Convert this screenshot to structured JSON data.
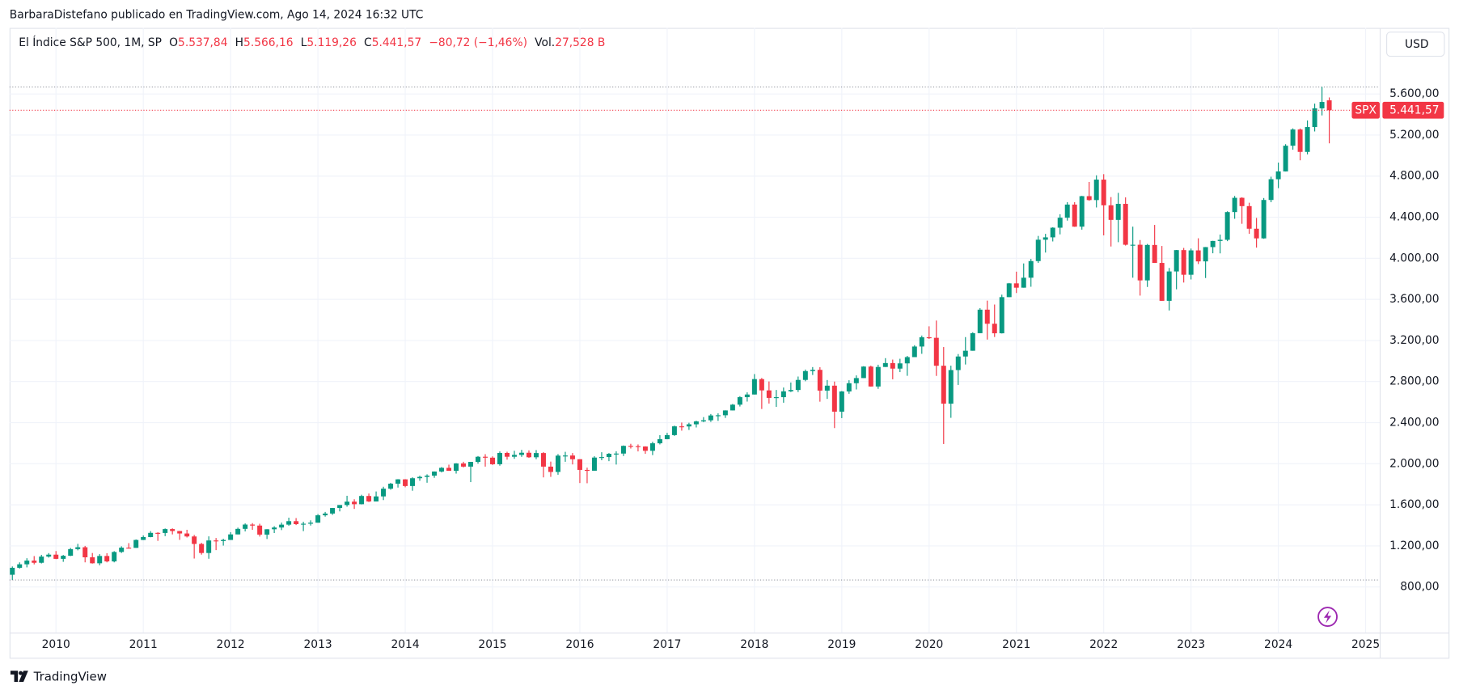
{
  "header": {
    "attribution": "BarbaraDistefano publicado en TradingView.com, Ago 14, 2024 16:32 UTC"
  },
  "chart_data": {
    "type": "candlestick",
    "title": "El Índice S&P 500, 1M, SP",
    "legend": {
      "o_label": "O",
      "open": "5.537,84",
      "h_label": "H",
      "high": "5.566,16",
      "l_label": "L",
      "low": "5.119,26",
      "c_label": "C",
      "close": "5.441,57",
      "change": "−80,72 (−1,46%)",
      "vol_label": "Vol.",
      "volume": "27,528 B"
    },
    "currency": "USD",
    "symbol": "SPX",
    "last_price_label": "5.441,57",
    "up_color": "#089981",
    "down_color": "#f23645",
    "grid": true,
    "categories": [
      null,
      null,
      null,
      null,
      null,
      null,
      "2010",
      null,
      null,
      null,
      null,
      null,
      null,
      null,
      null,
      null,
      null,
      null,
      "2011",
      null,
      null,
      null,
      null,
      null,
      null,
      null,
      null,
      null,
      null,
      null,
      "2012",
      null,
      null,
      null,
      null,
      null,
      null,
      null,
      null,
      null,
      null,
      null,
      "2013",
      null,
      null,
      null,
      null,
      null,
      null,
      null,
      null,
      null,
      null,
      null,
      "2014",
      null,
      null,
      null,
      null,
      null,
      null,
      null,
      null,
      null,
      null,
      null,
      "2015",
      null,
      null,
      null,
      null,
      null,
      null,
      null,
      null,
      null,
      null,
      null,
      "2016",
      null,
      null,
      null,
      null,
      null,
      null,
      null,
      null,
      null,
      null,
      null,
      "2017",
      null,
      null,
      null,
      null,
      null,
      null,
      null,
      null,
      null,
      null,
      null,
      "2018",
      null,
      null,
      null,
      null,
      null,
      null,
      null,
      null,
      null,
      null,
      null,
      "2019",
      null,
      null,
      null,
      null,
      null,
      null,
      null,
      null,
      null,
      null,
      null,
      "2020",
      null,
      null,
      null,
      null,
      null,
      null,
      null,
      null,
      null,
      null,
      null,
      "2021",
      null,
      null,
      null,
      null,
      null,
      null,
      null,
      null,
      null,
      null,
      null,
      "2022",
      null,
      null,
      null,
      null,
      null,
      null,
      null,
      null,
      null,
      null,
      null,
      "2023",
      null,
      null,
      null,
      null,
      null,
      null,
      null,
      null,
      null,
      null,
      null,
      "2024",
      null,
      null,
      null,
      null,
      null,
      null,
      null,
      null,
      null,
      null,
      null,
      "2025"
    ],
    "open": [
      919,
      987,
      1021,
      1057,
      1036,
      1096,
      1115,
      1074,
      1104,
      1169,
      1187,
      1089,
      1031,
      1102,
      1049,
      1141,
      1183,
      1181,
      1258,
      1286,
      1327,
      1326,
      1364,
      1345,
      1321,
      1292,
      1219,
      1131,
      1253,
      1247,
      1258,
      1312,
      1366,
      1408,
      1398,
      1310,
      1362,
      1379,
      1407,
      1441,
      1412,
      1416,
      1426,
      1498,
      1515,
      1569,
      1598,
      1631,
      1606,
      1686,
      1633,
      1682,
      1757,
      1806,
      1848,
      1783,
      1859,
      1872,
      1884,
      1924,
      1960,
      1931,
      2003,
      1972,
      2018,
      2068,
      2059,
      1995,
      2105,
      2068,
      2086,
      2107,
      2063,
      2104,
      1972,
      1920,
      2079,
      2080,
      2044,
      1940,
      1932,
      2060,
      2065,
      2097,
      2099,
      2174,
      2171,
      2168,
      2126,
      2199,
      2239,
      2279,
      2364,
      2363,
      2384,
      2412,
      2423,
      2470,
      2472,
      2519,
      2575,
      2648,
      2674,
      2824,
      2714,
      2641,
      2648,
      2705,
      2718,
      2816,
      2902,
      2914,
      2712,
      2760,
      2507,
      2704,
      2784,
      2834,
      2946,
      2752,
      2942,
      2980,
      2926,
      2977,
      3038,
      3141,
      3231,
      3226,
      2954,
      2585,
      2912,
      3044,
      3100,
      3271,
      3500,
      3363,
      3270,
      3622,
      3756,
      3714,
      3811,
      3973,
      4181,
      4204,
      4298,
      4395,
      4523,
      4308,
      4605,
      4567,
      4766,
      4516,
      4374,
      4530,
      4132,
      4132,
      3785,
      4130,
      3955,
      3586,
      3872,
      4080,
      3840,
      4077,
      3970,
      4109,
      4169,
      4180,
      4450,
      4589,
      4508,
      4288,
      4194,
      4568,
      4770,
      4846,
      5096,
      5254,
      5036,
      5278,
      5460,
      5537.84,
      null,
      null,
      null,
      null,
      null
    ],
    "high": [
      1000,
      1040,
      1080,
      1101,
      1113,
      1130,
      1150,
      1112,
      1180,
      1220,
      1200,
      1131,
      1120,
      1129,
      1149,
      1196,
      1227,
      1263,
      1302,
      1344,
      1333,
      1370,
      1371,
      1346,
      1357,
      1307,
      1230,
      1293,
      1277,
      1270,
      1334,
      1378,
      1419,
      1422,
      1416,
      1363,
      1392,
      1427,
      1475,
      1471,
      1435,
      1449,
      1510,
      1531,
      1570,
      1598,
      1688,
      1654,
      1698,
      1710,
      1730,
      1776,
      1814,
      1850,
      1850,
      1868,
      1884,
      1897,
      1925,
      1968,
      1991,
      2006,
      2019,
      2018,
      2075,
      2093,
      2072,
      2120,
      2117,
      2126,
      2135,
      2130,
      2133,
      2113,
      2021,
      2094,
      2116,
      2104,
      2044,
      1962,
      2073,
      2112,
      2104,
      2121,
      2178,
      2194,
      2188,
      2170,
      2214,
      2278,
      2301,
      2371,
      2401,
      2399,
      2419,
      2454,
      2484,
      2491,
      2520,
      2582,
      2658,
      2695,
      2873,
      2835,
      2801,
      2718,
      2742,
      2791,
      2849,
      2917,
      2941,
      2940,
      2815,
      2800,
      2708,
      2813,
      2860,
      2950,
      2955,
      2964,
      3028,
      3014,
      3022,
      3050,
      3154,
      3248,
      3338,
      3394,
      3136,
      2955,
      3068,
      3233,
      3280,
      3515,
      3588,
      3550,
      3646,
      3760,
      3870,
      3950,
      3994,
      4218,
      4238,
      4302,
      4429,
      4546,
      4546,
      4608,
      4743,
      4808,
      4819,
      4596,
      4637,
      4593,
      4308,
      4178,
      4140,
      4325,
      4120,
      3906,
      4081,
      4101,
      4095,
      4195,
      4110,
      4170,
      4231,
      4458,
      4607,
      4594,
      4541,
      4393,
      4587,
      4794,
      4932,
      5111,
      5265,
      5264,
      5342,
      5506,
      5669,
      5566.16,
      null,
      null,
      null,
      null,
      null
    ],
    "low": [
      869,
      979,
      991,
      1020,
      1029,
      1086,
      1071,
      1045,
      1101,
      1157,
      1040,
      1028,
      1011,
      1040,
      1040,
      1131,
      1174,
      1181,
      1257,
      1284,
      1249,
      1295,
      1312,
      1259,
      1282,
      1077,
      1115,
      1075,
      1159,
      1203,
      1258,
      1312,
      1341,
      1357,
      1291,
      1267,
      1325,
      1354,
      1396,
      1403,
      1344,
      1398,
      1426,
      1485,
      1502,
      1536,
      1582,
      1560,
      1604,
      1627,
      1633,
      1646,
      1747,
      1768,
      1771,
      1737,
      1834,
      1815,
      1863,
      1915,
      1931,
      1904,
      1964,
      1821,
      2001,
      1972,
      1988,
      1981,
      2040,
      2048,
      2067,
      2057,
      2044,
      1867,
      1872,
      1893,
      2019,
      1993,
      1812,
      1810,
      1932,
      2034,
      2025,
      1992,
      2075,
      2148,
      2120,
      2097,
      2084,
      2188,
      2238,
      2271,
      2322,
      2329,
      2353,
      2405,
      2407,
      2417,
      2446,
      2519,
      2557,
      2605,
      2674,
      2533,
      2586,
      2553,
      2594,
      2698,
      2698,
      2803,
      2864,
      2604,
      2631,
      2347,
      2444,
      2681,
      2723,
      2834,
      2751,
      2729,
      2942,
      2822,
      2892,
      2856,
      3038,
      3070,
      3215,
      2855,
      2192,
      2447,
      2767,
      2966,
      3100,
      3271,
      3209,
      3234,
      3268,
      3622,
      3662,
      3714,
      3723,
      3955,
      4056,
      4164,
      4233,
      4367,
      4306,
      4279,
      4560,
      4495,
      4223,
      4115,
      4157,
      4124,
      3811,
      3637,
      3721,
      3955,
      3585,
      3492,
      3698,
      3764,
      3794,
      3944,
      3808,
      4049,
      4048,
      4167,
      4385,
      4336,
      4238,
      4104,
      4190,
      4546,
      4683,
      4845,
      5057,
      4954,
      5012,
      5235,
      5391,
      5119.26,
      null,
      null,
      null,
      null,
      null
    ],
    "close": [
      987,
      1021,
      1057,
      1036,
      1096,
      1115,
      1074,
      1104,
      1169,
      1187,
      1089,
      1031,
      1102,
      1049,
      1141,
      1183,
      1181,
      1258,
      1286,
      1327,
      1326,
      1364,
      1345,
      1321,
      1292,
      1219,
      1131,
      1253,
      1247,
      1258,
      1312,
      1366,
      1408,
      1398,
      1310,
      1362,
      1379,
      1407,
      1441,
      1412,
      1416,
      1426,
      1498,
      1515,
      1569,
      1598,
      1631,
      1606,
      1686,
      1633,
      1682,
      1757,
      1806,
      1848,
      1783,
      1859,
      1872,
      1884,
      1924,
      1960,
      1931,
      2003,
      1972,
      2018,
      2068,
      2059,
      1995,
      2105,
      2068,
      2086,
      2107,
      2063,
      2104,
      1972,
      1920,
      2079,
      2080,
      2044,
      1940,
      1932,
      2060,
      2065,
      2097,
      2099,
      2174,
      2171,
      2168,
      2126,
      2199,
      2239,
      2279,
      2364,
      2363,
      2384,
      2412,
      2423,
      2470,
      2472,
      2519,
      2575,
      2648,
      2674,
      2824,
      2714,
      2641,
      2648,
      2705,
      2718,
      2816,
      2902,
      2914,
      2712,
      2760,
      2507,
      2704,
      2784,
      2834,
      2946,
      2752,
      2942,
      2980,
      2926,
      2977,
      3038,
      3141,
      3231,
      3226,
      2954,
      2585,
      2912,
      3044,
      3100,
      3271,
      3500,
      3363,
      3270,
      3622,
      3756,
      3714,
      3811,
      3973,
      4181,
      4204,
      4298,
      4395,
      4523,
      4308,
      4605,
      4567,
      4766,
      4516,
      4374,
      4530,
      4132,
      4132,
      3785,
      4130,
      3955,
      3586,
      3872,
      4080,
      3840,
      4077,
      3970,
      4109,
      4169,
      4180,
      4450,
      4589,
      4508,
      4288,
      4194,
      4568,
      4770,
      4846,
      5096,
      5254,
      5036,
      5278,
      5460,
      5522,
      5441.57,
      null,
      null,
      null,
      null,
      null
    ],
    "ylim": [
      356,
      6243
    ],
    "yticks": [
      {
        "value": 800,
        "label": "800,00"
      },
      {
        "value": 1200,
        "label": "1.200,00"
      },
      {
        "value": 1600,
        "label": "1.600,00"
      },
      {
        "value": 2000,
        "label": "2.000,00"
      },
      {
        "value": 2400,
        "label": "2.400,00"
      },
      {
        "value": 2800,
        "label": "2.800,00"
      },
      {
        "value": 3200,
        "label": "3.200,00"
      },
      {
        "value": 3600,
        "label": "3.600,00"
      },
      {
        "value": 4000,
        "label": "4.000,00"
      },
      {
        "value": 4400,
        "label": "4.400,00"
      },
      {
        "value": 4800,
        "label": "4.800,00"
      },
      {
        "value": 5200,
        "label": "5.200,00"
      },
      {
        "value": 5600,
        "label": "5.600,00"
      }
    ]
  },
  "footer": {
    "brand": "TradingView"
  }
}
